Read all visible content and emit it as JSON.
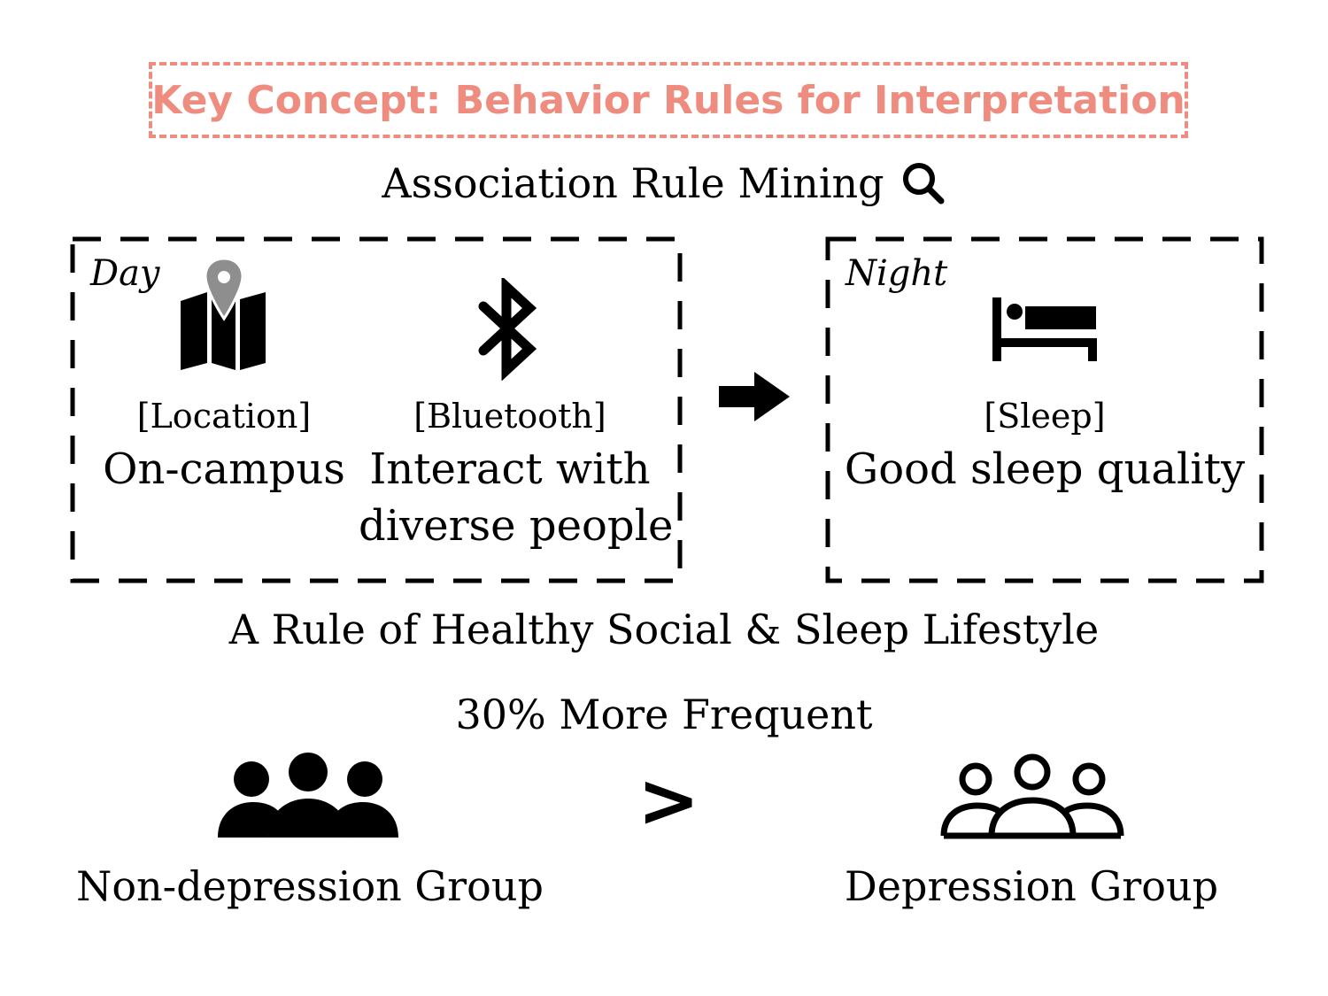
{
  "header": {
    "title": "Key Concept: Behavior Rules for Interpretation",
    "subtitle": "Association Rule Mining",
    "accent_color": "#ee8c7f"
  },
  "day_panel": {
    "label": "Day",
    "items": [
      {
        "icon": "map-location-icon",
        "category": "[Location]",
        "value": "On-campus"
      },
      {
        "icon": "bluetooth-icon",
        "category": "[Bluetooth]",
        "value_line1": "Interact with",
        "value_line2": "diverse people"
      }
    ]
  },
  "night_panel": {
    "label": "Night",
    "items": [
      {
        "icon": "bed-icon",
        "category": "[Sleep]",
        "value": "Good sleep quality"
      }
    ]
  },
  "rule_caption": "A Rule of Healthy Social & Sleep Lifestyle",
  "comparison": {
    "frequency_text": "30% More Frequent",
    "operator": ">",
    "left_group": "Non-depression Group",
    "right_group": "Depression Group"
  }
}
